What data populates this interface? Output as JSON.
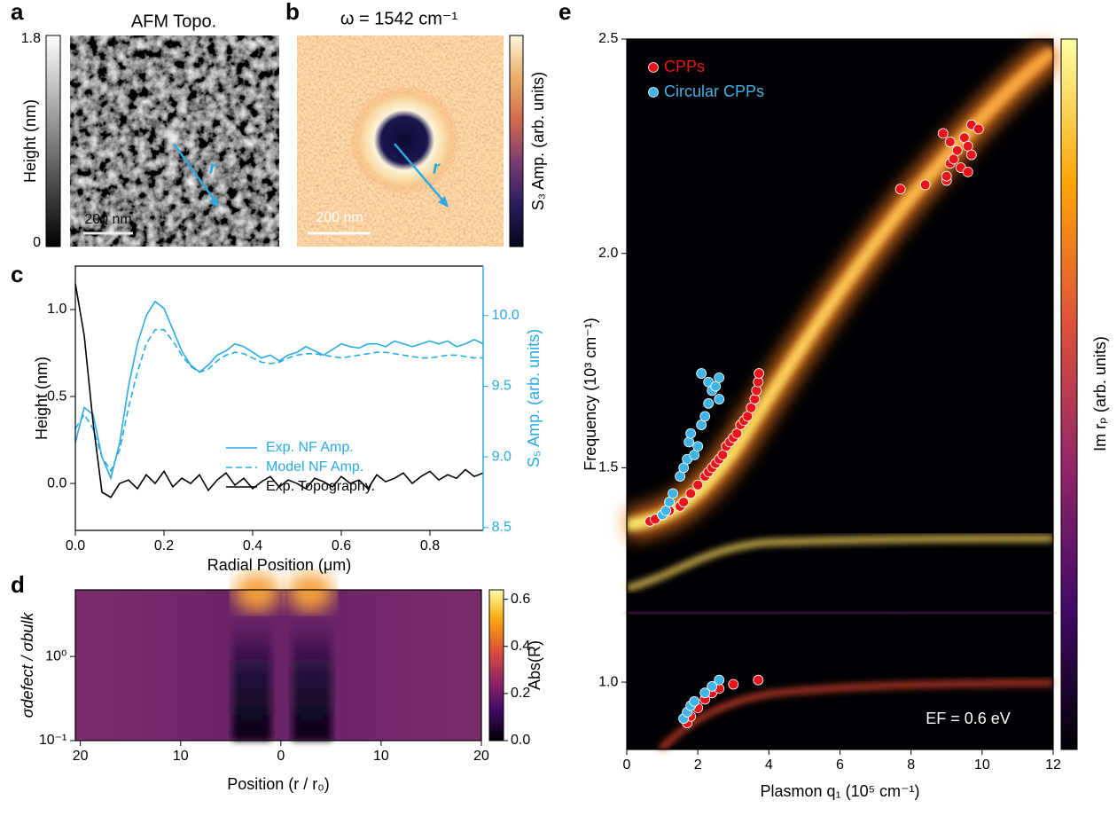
{
  "chart_data": [
    {
      "type": "image",
      "panel_label": "a",
      "title": "AFM Topo.",
      "colorbar_label": "Height (nm)",
      "colormap": "gray",
      "colorbar_lim": [
        0,
        1.8
      ],
      "colorbar_ticks": [
        0,
        1.8
      ],
      "scale_bar": "200 nm",
      "arrow_label": "r"
    },
    {
      "type": "image",
      "panel_label": "b",
      "title": "ω = 1542 cm⁻¹",
      "colorbar_label": "S₃ Amp. (arb. units)",
      "colormap": "lipari",
      "scale_bar": "200 nm",
      "arrow_label": "r"
    },
    {
      "type": "line",
      "panel_label": "c",
      "xlabel": "Radial Position (μm)",
      "ylabel": "Height (nm)",
      "y2label": "S₅ Amp. (arb. units)",
      "x": [
        0,
        0.02,
        0.04,
        0.06,
        0.08,
        0.1,
        0.12,
        0.14,
        0.16,
        0.18,
        0.2,
        0.22,
        0.24,
        0.26,
        0.28,
        0.3,
        0.32,
        0.34,
        0.36,
        0.38,
        0.4,
        0.42,
        0.44,
        0.46,
        0.48,
        0.5,
        0.52,
        0.54,
        0.56,
        0.58,
        0.6,
        0.62,
        0.64,
        0.66,
        0.68,
        0.7,
        0.72,
        0.74,
        0.76,
        0.78,
        0.8,
        0.82,
        0.84,
        0.86,
        0.88,
        0.9,
        0.92
      ],
      "series": [
        {
          "name": "Exp. NF Amp.",
          "color": "#29abe2",
          "axis": "y2",
          "line_style": "solid",
          "values": [
            9.1,
            9.35,
            9.3,
            9.0,
            8.85,
            9.1,
            9.5,
            9.8,
            10.0,
            10.1,
            10.05,
            9.9,
            9.75,
            9.65,
            9.6,
            9.65,
            9.72,
            9.75,
            9.8,
            9.78,
            9.74,
            9.7,
            9.72,
            9.68,
            9.72,
            9.74,
            9.78,
            9.75,
            9.72,
            9.76,
            9.8,
            9.78,
            9.77,
            9.8,
            9.8,
            9.78,
            9.82,
            9.8,
            9.78,
            9.8,
            9.82,
            9.8,
            9.82,
            9.78,
            9.8,
            9.83,
            9.8
          ]
        },
        {
          "name": "Model NF Amp.",
          "color": "#29abe2",
          "axis": "y2",
          "line_style": "dashed",
          "values": [
            9.2,
            9.3,
            9.2,
            9.0,
            8.9,
            9.05,
            9.35,
            9.6,
            9.8,
            9.9,
            9.9,
            9.82,
            9.72,
            9.64,
            9.6,
            9.62,
            9.68,
            9.72,
            9.74,
            9.73,
            9.7,
            9.67,
            9.66,
            9.67,
            9.7,
            9.72,
            9.73,
            9.73,
            9.72,
            9.71,
            9.7,
            9.71,
            9.72,
            9.73,
            9.74,
            9.74,
            9.73,
            9.72,
            9.71,
            9.7,
            9.7,
            9.71,
            9.72,
            9.72,
            9.71,
            9.7,
            9.7
          ]
        },
        {
          "name": "Exp. Topography.",
          "color": "#000000",
          "axis": "y",
          "line_style": "solid",
          "values": [
            1.15,
            0.85,
            0.35,
            -0.05,
            -0.08,
            0.0,
            0.02,
            -0.03,
            0.05,
            0.0,
            0.07,
            -0.02,
            0.03,
            0.0,
            0.05,
            -0.04,
            0.02,
            0.06,
            -0.01,
            0.03,
            -0.03,
            0.01,
            0.04,
            -0.02,
            0.02,
            0.0,
            -0.03,
            0.03,
            0.01,
            -0.02,
            0.04,
            0.0,
            0.02,
            -0.03,
            0.05,
            0.01,
            0.03,
            0.06,
            0.0,
            0.04,
            0.07,
            0.02,
            0.05,
            0.03,
            0.08,
            0.04,
            0.06
          ]
        }
      ],
      "xlim": [
        0,
        0.92
      ],
      "xticks": [
        {
          "value": 0,
          "label": "0.0"
        },
        0.2,
        0.4,
        0.6,
        0.8
      ],
      "ylim": [
        -0.27,
        1.25
      ],
      "yticks": [
        {
          "value": 0,
          "label": "0.0"
        },
        0.5,
        {
          "value": 1,
          "label": "1.0"
        }
      ],
      "y2lim": [
        8.48,
        10.35
      ],
      "y2ticks": [
        8.5,
        {
          "value": 9,
          "label": "9.0"
        },
        9.5,
        {
          "value": 10,
          "label": "10.0"
        }
      ],
      "y2color": "#29abe2"
    },
    {
      "type": "heatmap",
      "panel_label": "d",
      "xlabel": "Position (r / r₀)",
      "ylabel": "σdefect / σbulk",
      "colorbar_label": "Abs(R)",
      "colormap": "inferno",
      "xlim": [
        -20.5,
        20
      ],
      "xticks": [
        {
          "value": -20,
          "label": "20"
        },
        {
          "value": -10,
          "label": "10"
        },
        0,
        10,
        20
      ],
      "ylim": [
        0.1,
        6.2
      ],
      "log_y": true,
      "yticks": [
        {
          "value": 0.1,
          "label": "10⁻¹"
        },
        {
          "value": 1,
          "label": "10⁰"
        }
      ],
      "colorbar_lim": [
        0,
        0.64
      ],
      "colorbar_ticks": [
        {
          "value": 0,
          "label": "0.0"
        },
        0.2,
        0.4,
        0.6
      ]
    },
    {
      "type": "scatter",
      "panel_label": "e",
      "xlabel": "Plasmon q₁ (10⁵ cm⁻¹)",
      "ylabel": "Frequency (10³ cm⁻¹)",
      "colorbar_label": "Im rₚ (arb. units)",
      "colormap": "inferno",
      "annotation": "EF = 0.6 eV",
      "series": [
        {
          "name": "CPPs",
          "color": "#e8131b",
          "x": [
            0.65,
            0.8,
            1.0,
            1.2,
            1.5,
            1.6,
            1.8,
            2.0,
            2.2,
            2.3,
            2.4,
            2.5,
            2.6,
            2.7,
            2.8,
            2.9,
            3.0,
            3.1,
            3.2,
            3.3,
            3.4,
            3.5,
            3.6,
            3.65,
            3.7,
            3.72,
            7.7,
            8.4,
            8.9,
            9.0,
            9.0,
            9.1,
            9.1,
            9.2,
            9.3,
            9.4,
            9.5,
            9.6,
            9.6,
            9.7,
            9.7,
            9.9,
            1.7,
            1.8,
            2.0,
            2.2,
            2.4,
            2.6,
            3.0,
            3.7
          ],
          "values": [
            1.375,
            1.38,
            1.39,
            1.4,
            1.41,
            1.42,
            1.44,
            1.46,
            1.48,
            1.49,
            1.5,
            1.51,
            1.52,
            1.53,
            1.55,
            1.56,
            1.57,
            1.58,
            1.6,
            1.61,
            1.62,
            1.64,
            1.66,
            1.68,
            1.7,
            1.72,
            2.15,
            2.16,
            2.28,
            2.17,
            2.18,
            2.21,
            2.26,
            2.22,
            2.24,
            2.2,
            2.27,
            2.19,
            2.25,
            2.23,
            2.3,
            2.29,
            0.905,
            0.92,
            0.94,
            0.96,
            0.975,
            0.985,
            0.995,
            1.005
          ]
        },
        {
          "name": "Circular CPPs",
          "color": "#3fb4e6",
          "x": [
            1.0,
            1.1,
            1.2,
            1.3,
            1.5,
            1.6,
            1.7,
            1.75,
            1.8,
            1.9,
            2.0,
            2.1,
            2.2,
            2.3,
            2.1,
            2.3,
            2.4,
            2.5,
            2.6,
            2.6,
            1.6,
            1.7,
            1.8,
            1.9,
            2.2,
            2.4,
            2.6
          ],
          "values": [
            1.39,
            1.4,
            1.42,
            1.44,
            1.48,
            1.5,
            1.52,
            1.56,
            1.58,
            1.53,
            1.55,
            1.6,
            1.62,
            1.65,
            1.72,
            1.7,
            1.68,
            1.69,
            1.71,
            1.66,
            0.915,
            0.93,
            0.945,
            0.955,
            0.975,
            0.99,
            1.005
          ]
        }
      ],
      "xlim": [
        0,
        12
      ],
      "xticks": [
        0,
        2,
        4,
        6,
        8,
        10,
        12
      ],
      "ylim": [
        0.843,
        2.5
      ],
      "yticks": [
        {
          "value": 1,
          "label": "1.0"
        },
        1.5,
        {
          "value": 2,
          "label": "2.0"
        },
        2.5
      ]
    }
  ]
}
